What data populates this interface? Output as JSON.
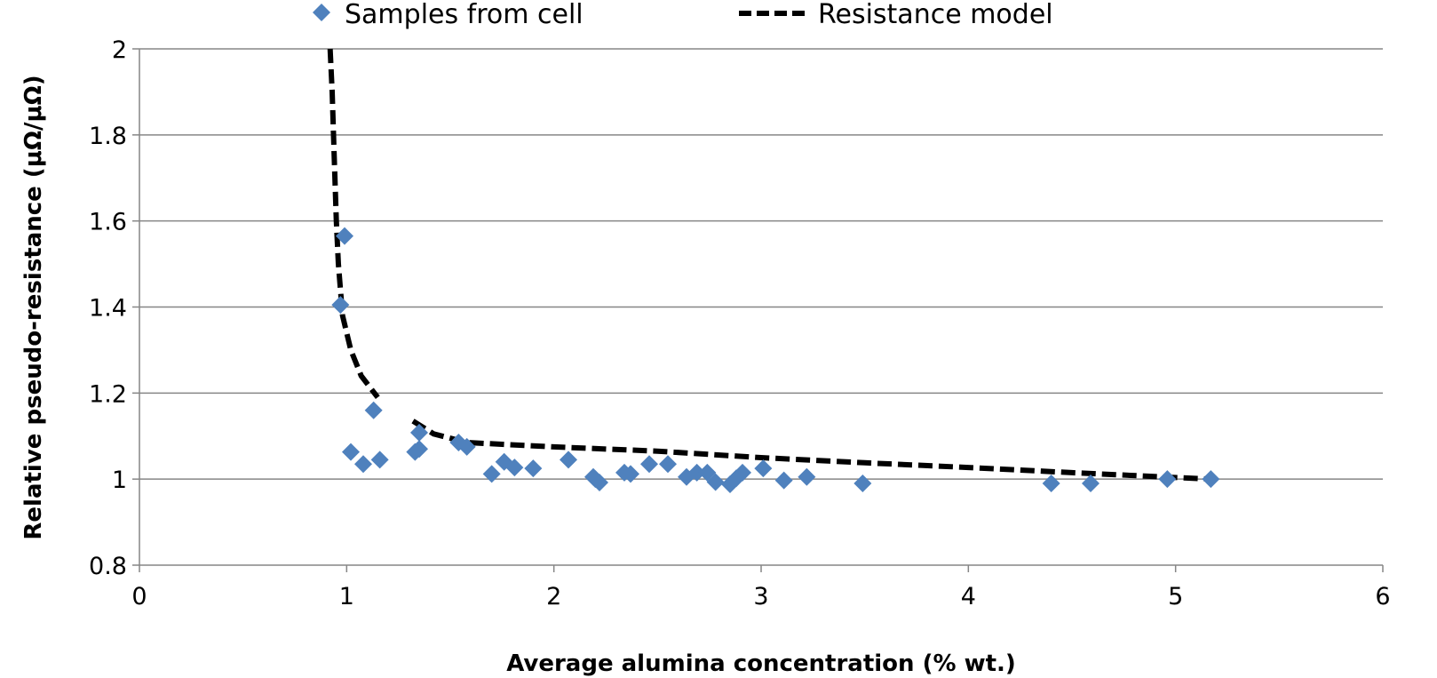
{
  "chart_data": {
    "type": "scatter",
    "title": "",
    "xlabel": "Average alumina concentration (% wt.)",
    "ylabel": "Relative pseudo-resistance (μΩ/μΩ)",
    "xlim": [
      0,
      6
    ],
    "ylim": [
      0.8,
      2
    ],
    "x_ticks": [
      "0",
      "1",
      "2",
      "3",
      "4",
      "5",
      "6"
    ],
    "y_ticks": [
      "0.8",
      "1",
      "1.2",
      "1.4",
      "1.6",
      "1.8",
      "2"
    ],
    "grid": "horizontal",
    "legend_position": "top",
    "series": [
      {
        "name": "Samples from cell",
        "kind": "markers",
        "marker": "diamond",
        "color": "#4f81bd",
        "points": [
          [
            0.99,
            1.565
          ],
          [
            0.97,
            1.405
          ],
          [
            1.02,
            1.063
          ],
          [
            1.08,
            1.035
          ],
          [
            1.13,
            1.16
          ],
          [
            1.16,
            1.045
          ],
          [
            1.33,
            1.063
          ],
          [
            1.35,
            1.07
          ],
          [
            1.35,
            1.108
          ],
          [
            1.54,
            1.085
          ],
          [
            1.58,
            1.075
          ],
          [
            1.7,
            1.012
          ],
          [
            1.76,
            1.04
          ],
          [
            1.81,
            1.027
          ],
          [
            1.9,
            1.025
          ],
          [
            2.07,
            1.045
          ],
          [
            2.19,
            1.005
          ],
          [
            2.2,
            1.0
          ],
          [
            2.22,
            0.992
          ],
          [
            2.34,
            1.015
          ],
          [
            2.37,
            1.012
          ],
          [
            2.46,
            1.035
          ],
          [
            2.55,
            1.035
          ],
          [
            2.64,
            1.005
          ],
          [
            2.69,
            1.015
          ],
          [
            2.74,
            1.015
          ],
          [
            2.78,
            0.993
          ],
          [
            2.85,
            0.988
          ],
          [
            2.88,
            1.002
          ],
          [
            2.91,
            1.015
          ],
          [
            3.01,
            1.025
          ],
          [
            3.11,
            0.997
          ],
          [
            3.22,
            1.005
          ],
          [
            3.49,
            0.99
          ],
          [
            4.4,
            0.99
          ],
          [
            4.59,
            0.99
          ],
          [
            4.96,
            1.0
          ],
          [
            5.17,
            1.0
          ]
        ]
      },
      {
        "name": "Resistance model",
        "kind": "dashed-line",
        "color": "#000000",
        "segments": [
          [
            [
              0.92,
              2.0
            ],
            [
              0.93,
              1.9
            ],
            [
              0.94,
              1.75
            ],
            [
              0.95,
              1.6
            ],
            [
              0.96,
              1.5
            ],
            [
              0.98,
              1.38
            ],
            [
              1.02,
              1.3
            ],
            [
              1.07,
              1.24
            ],
            [
              1.15,
              1.19
            ]
          ],
          [
            [
              1.32,
              1.135
            ],
            [
              1.42,
              1.105
            ],
            [
              1.58,
              1.085
            ],
            [
              2.0,
              1.075
            ],
            [
              2.5,
              1.065
            ],
            [
              3.0,
              1.05
            ],
            [
              3.5,
              1.038
            ],
            [
              4.0,
              1.027
            ],
            [
              4.5,
              1.015
            ],
            [
              5.17,
              1.0
            ]
          ]
        ]
      }
    ]
  }
}
